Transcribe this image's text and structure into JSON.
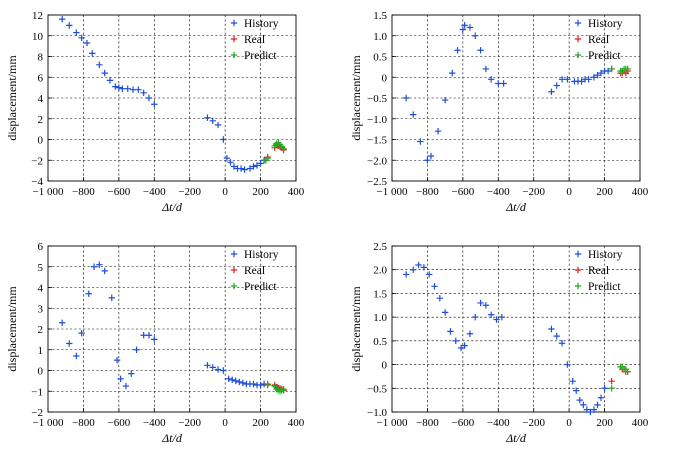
{
  "colors": {
    "history": "#1f4fd6",
    "real": "#e02020",
    "predict": "#22aa22"
  },
  "chart_data": [
    {
      "type": "scatter",
      "xlabel": "Δt/d",
      "ylabel": "displacement/mm",
      "xlim": [
        -1000,
        400
      ],
      "ylim": [
        -4,
        12
      ],
      "xticks": [
        -1000,
        -800,
        -600,
        -400,
        -200,
        0,
        200,
        400
      ],
      "xtick_labels": [
        "−1 000",
        "−800",
        "−600",
        "−400",
        "−200",
        "0",
        "200",
        "400"
      ],
      "yticks": [
        -4,
        -2,
        0,
        2,
        4,
        6,
        8,
        10,
        12
      ],
      "ytick_labels": [
        "−4",
        "−2",
        "0",
        "2",
        "4",
        "6",
        "8",
        "10",
        "12"
      ],
      "legend": [
        "History",
        "Real",
        "Predict"
      ],
      "legend_position": "top-right",
      "series": [
        {
          "name": "History",
          "x": [
            -920,
            -880,
            -840,
            -810,
            -780,
            -750,
            -710,
            -680,
            -650,
            -620,
            -600,
            -580,
            -550,
            -520,
            -490,
            -460,
            -430,
            -400,
            -100,
            -70,
            -40,
            -10,
            10,
            30,
            50,
            70,
            90,
            110,
            140,
            160,
            180,
            200,
            220
          ],
          "y": [
            11.6,
            11.0,
            10.3,
            9.8,
            9.3,
            8.3,
            7.2,
            6.4,
            5.7,
            5.1,
            5.0,
            4.9,
            4.9,
            4.8,
            4.8,
            4.5,
            4.0,
            3.4,
            2.1,
            1.8,
            1.4,
            0.0,
            -1.8,
            -2.2,
            -2.6,
            -2.8,
            -2.8,
            -2.9,
            -2.8,
            -2.6,
            -2.5,
            -2.3,
            -2.0
          ]
        },
        {
          "name": "Real",
          "x": [
            230,
            240,
            280,
            290,
            300,
            310,
            320,
            330
          ],
          "y": [
            -2.0,
            -1.7,
            -0.8,
            -0.5,
            -0.6,
            -0.7,
            -0.8,
            -1.0
          ]
        },
        {
          "name": "Predict",
          "x": [
            230,
            240,
            280,
            290,
            300,
            310,
            320,
            330
          ],
          "y": [
            -2.0,
            -1.8,
            -0.6,
            -0.4,
            -0.3,
            -0.5,
            -0.7,
            -0.9
          ]
        }
      ]
    },
    {
      "type": "scatter",
      "xlabel": "Δt/d",
      "ylabel": "displacement/mm",
      "xlim": [
        -1000,
        400
      ],
      "ylim": [
        -2.5,
        1.5
      ],
      "xticks": [
        -1000,
        -800,
        -600,
        -400,
        -200,
        0,
        200,
        400
      ],
      "xtick_labels": [
        "−1 000",
        "−800",
        "−600",
        "−400",
        "−200",
        "0",
        "200",
        "400"
      ],
      "yticks": [
        -2.5,
        -2.0,
        -1.5,
        -1.0,
        -0.5,
        0,
        0.5,
        1.0,
        1.5
      ],
      "ytick_labels": [
        "−2.5",
        "−2.0",
        "−1.5",
        "−1.0",
        "−0.5",
        "0",
        "0.5",
        "1.0",
        "1.5"
      ],
      "legend": [
        "History",
        "Real",
        "Predict"
      ],
      "legend_position": "top-right",
      "series": [
        {
          "name": "History",
          "x": [
            -920,
            -880,
            -840,
            -800,
            -780,
            -740,
            -700,
            -660,
            -630,
            -600,
            -590,
            -560,
            -530,
            -500,
            -470,
            -440,
            -400,
            -370,
            -100,
            -70,
            -40,
            -10,
            30,
            50,
            70,
            90,
            110,
            140,
            160,
            180,
            200,
            220
          ],
          "y": [
            -0.5,
            -0.9,
            -1.55,
            -2.0,
            -1.9,
            -1.3,
            -0.55,
            0.1,
            0.65,
            1.15,
            1.25,
            1.2,
            1.0,
            0.65,
            0.2,
            -0.05,
            -0.15,
            -0.15,
            -0.35,
            -0.2,
            -0.05,
            -0.05,
            -0.1,
            -0.1,
            -0.1,
            -0.05,
            -0.05,
            0.0,
            0.05,
            0.1,
            0.15,
            0.15
          ]
        },
        {
          "name": "Real",
          "x": [
            240,
            290,
            300,
            310,
            320,
            330
          ],
          "y": [
            0.2,
            0.1,
            0.1,
            0.15,
            0.1,
            0.15
          ]
        },
        {
          "name": "Predict",
          "x": [
            240,
            290,
            300,
            310,
            320,
            330
          ],
          "y": [
            0.2,
            0.15,
            0.15,
            0.2,
            0.2,
            0.2
          ]
        }
      ]
    },
    {
      "type": "scatter",
      "xlabel": "Δt/d",
      "ylabel": "displacement/mm",
      "xlim": [
        -1000,
        400
      ],
      "ylim": [
        -2,
        6
      ],
      "xticks": [
        -1000,
        -800,
        -600,
        -400,
        -200,
        0,
        200,
        400
      ],
      "xtick_labels": [
        "−1 000",
        "−800",
        "−600",
        "−400",
        "−200",
        "0",
        "200",
        "400"
      ],
      "yticks": [
        -2,
        -1,
        0,
        1,
        2,
        3,
        4,
        5,
        6
      ],
      "ytick_labels": [
        "−2",
        "−1",
        "0",
        "1",
        "2",
        "3",
        "4",
        "5",
        "6"
      ],
      "legend": [
        "History",
        "Real",
        "Predict"
      ],
      "legend_position": "top-right",
      "series": [
        {
          "name": "History",
          "x": [
            -920,
            -880,
            -840,
            -810,
            -770,
            -740,
            -710,
            -680,
            -640,
            -610,
            -590,
            -560,
            -530,
            -500,
            -460,
            -430,
            -400,
            -100,
            -70,
            -40,
            -10,
            20,
            40,
            60,
            80,
            100,
            120,
            140,
            160,
            180,
            200,
            220
          ],
          "y": [
            2.3,
            1.3,
            0.7,
            1.8,
            3.7,
            5.0,
            5.1,
            4.8,
            3.5,
            0.5,
            -0.4,
            -0.75,
            -0.15,
            1.0,
            1.7,
            1.7,
            1.5,
            0.25,
            0.15,
            0.05,
            0.0,
            -0.4,
            -0.45,
            -0.5,
            -0.55,
            -0.6,
            -0.65,
            -0.65,
            -0.65,
            -0.7,
            -0.7,
            -0.65
          ]
        },
        {
          "name": "Real",
          "x": [
            240,
            280,
            290,
            300,
            310,
            320,
            330
          ],
          "y": [
            -0.7,
            -0.7,
            -0.8,
            -0.85,
            -0.85,
            -0.9,
            -0.95
          ]
        },
        {
          "name": "Predict",
          "x": [
            240,
            280,
            290,
            300,
            310,
            320,
            330
          ],
          "y": [
            -0.65,
            -0.75,
            -0.9,
            -0.95,
            -1.0,
            -0.95,
            -0.9
          ]
        }
      ]
    },
    {
      "type": "scatter",
      "xlabel": "Δt/d",
      "ylabel": "displacement/mm",
      "xlim": [
        -1000,
        400
      ],
      "ylim": [
        -1.0,
        2.5
      ],
      "xticks": [
        -1000,
        -800,
        -600,
        -400,
        -200,
        0,
        200,
        400
      ],
      "xtick_labels": [
        "−1 000",
        "−800",
        "−600",
        "−400",
        "−200",
        "0",
        "200",
        "400"
      ],
      "yticks": [
        -1.0,
        -0.5,
        0,
        0.5,
        1.0,
        1.5,
        2.0,
        2.5
      ],
      "ytick_labels": [
        "−1.0",
        "−0.5",
        "0",
        "0.5",
        "1.0",
        "1.5",
        "2.0",
        "2.5"
      ],
      "legend": [
        "History",
        "Real",
        "Predict"
      ],
      "legend_position": "top-right",
      "series": [
        {
          "name": "History",
          "x": [
            -920,
            -880,
            -850,
            -820,
            -790,
            -760,
            -730,
            -700,
            -670,
            -640,
            -610,
            -590,
            -560,
            -530,
            -500,
            -470,
            -440,
            -410,
            -380,
            -100,
            -70,
            -40,
            -10,
            20,
            40,
            60,
            80,
            100,
            120,
            140,
            160,
            180,
            200
          ],
          "y": [
            1.9,
            2.0,
            2.1,
            2.05,
            1.9,
            1.65,
            1.4,
            1.1,
            0.7,
            0.5,
            0.35,
            0.4,
            0.65,
            1.0,
            1.3,
            1.25,
            1.05,
            0.95,
            1.0,
            0.75,
            0.6,
            0.45,
            0.0,
            -0.35,
            -0.55,
            -0.75,
            -0.85,
            -0.95,
            -1.0,
            -0.95,
            -0.85,
            -0.7,
            -0.5
          ]
        },
        {
          "name": "Real",
          "x": [
            240,
            290,
            300,
            310,
            320,
            330
          ],
          "y": [
            -0.35,
            -0.05,
            -0.1,
            -0.1,
            -0.15,
            -0.15
          ]
        },
        {
          "name": "Predict",
          "x": [
            240,
            290,
            300,
            310,
            320,
            330
          ],
          "y": [
            -0.5,
            -0.05,
            -0.05,
            -0.1,
            -0.1,
            -0.15
          ]
        }
      ]
    }
  ]
}
